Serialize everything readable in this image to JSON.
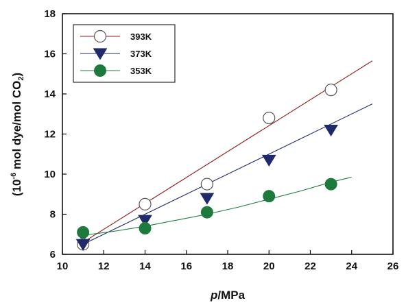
{
  "chart_data": {
    "type": "scatter",
    "title": "",
    "xlabel_italic": "p",
    "xlabel_rest": "/MPa",
    "ylabel_prefix": "(10",
    "ylabel_exp": "-6",
    "ylabel_mid": " mol dye/mol CO",
    "ylabel_sub": "2",
    "ylabel_suffix": ")",
    "xlim": [
      10,
      26
    ],
    "ylim": [
      6,
      18
    ],
    "xticks": [
      10,
      12,
      14,
      16,
      18,
      20,
      22,
      24,
      26
    ],
    "yticks": [
      6,
      8,
      10,
      12,
      14,
      16,
      18
    ],
    "grid": false,
    "legend_position": "top-left",
    "series": [
      {
        "name": "393K",
        "marker": "open-circle",
        "color": "#8b1a1a",
        "x": [
          11,
          14,
          17,
          20,
          23
        ],
        "y": [
          6.5,
          8.5,
          9.5,
          12.8,
          14.2
        ],
        "fit_x": [
          11,
          25
        ],
        "fit_y": [
          6.6,
          15.65
        ]
      },
      {
        "name": "373K",
        "marker": "filled-triangle-down",
        "color": "#1f2a6b",
        "x": [
          11,
          14,
          17,
          20,
          23
        ],
        "y": [
          6.5,
          7.7,
          8.8,
          10.7,
          12.2
        ],
        "fit_x": [
          11,
          25
        ],
        "fit_y": [
          6.5,
          13.5
        ]
      },
      {
        "name": "353K",
        "marker": "filled-circle",
        "color": "#1e7a3c",
        "x": [
          11,
          14,
          17,
          20,
          23
        ],
        "y": [
          7.1,
          7.3,
          8.1,
          8.9,
          9.5
        ],
        "fit_x": [
          11,
          12.5,
          14,
          15.5,
          17,
          18.5,
          20,
          21.5,
          23,
          24
        ],
        "fit_y": [
          6.95,
          7.15,
          7.4,
          7.7,
          8.0,
          8.35,
          8.75,
          9.15,
          9.6,
          9.85
        ]
      }
    ]
  }
}
